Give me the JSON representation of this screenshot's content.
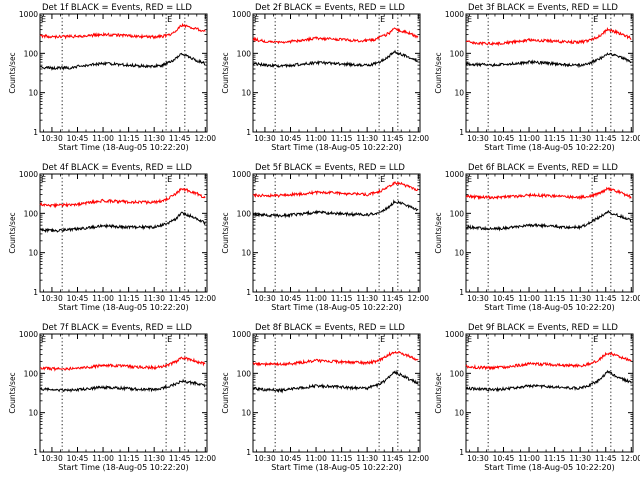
{
  "figure": {
    "common": {
      "title_suffix": "BLACK = Events, RED = LLD",
      "xlabel": "Start Time (18-Aug-05 10:22:20)",
      "ylabel": "Counts/sec",
      "xtick_labels": [
        "10:30",
        "10:45",
        "11:00",
        "11:15",
        "11:30",
        "11:45",
        "12:00"
      ],
      "ytick_labels": [
        "1",
        "10",
        "100",
        "1000"
      ],
      "marker_label": "E",
      "colors": {
        "events": "#000000",
        "lld": "#ff0000"
      }
    }
  },
  "chart_data": [
    {
      "type": "line",
      "title": "Det 1f BLACK = Events, RED = LLD",
      "xlabel": "Start Time (18-Aug-05 10:22:20)",
      "ylabel": "Counts/sec",
      "y_scale": "log",
      "xlim": [
        "10:23",
        "12:01"
      ],
      "ylim": [
        1,
        1000
      ],
      "vlines": [
        "10:36",
        "11:37",
        "11:48"
      ],
      "x": [
        "10:23",
        "10:30",
        "10:40",
        "10:50",
        "11:00",
        "11:10",
        "11:20",
        "11:30",
        "11:35",
        "11:40",
        "11:43",
        "11:46",
        "11:50",
        "11:55",
        "12:00"
      ],
      "series": [
        {
          "name": "Events",
          "color": "#000000",
          "values": [
            45,
            42,
            43,
            50,
            55,
            52,
            48,
            47,
            50,
            62,
            75,
            100,
            85,
            65,
            55
          ]
        },
        {
          "name": "LLD",
          "color": "#ff0000",
          "values": [
            280,
            260,
            265,
            280,
            300,
            290,
            270,
            260,
            270,
            300,
            380,
            520,
            480,
            420,
            350
          ]
        }
      ]
    },
    {
      "type": "line",
      "title": "Det 2f BLACK = Events, RED = LLD",
      "xlabel": "Start Time (18-Aug-05 10:22:20)",
      "ylabel": "Counts/sec",
      "y_scale": "log",
      "xlim": [
        "10:23",
        "12:01"
      ],
      "ylim": [
        1,
        1000
      ],
      "vlines": [
        "10:36",
        "11:37",
        "11:48"
      ],
      "x": [
        "10:23",
        "10:30",
        "10:40",
        "10:50",
        "11:00",
        "11:10",
        "11:20",
        "11:30",
        "11:35",
        "11:40",
        "11:43",
        "11:46",
        "11:50",
        "11:55",
        "12:00"
      ],
      "series": [
        {
          "name": "Events",
          "color": "#000000",
          "values": [
            55,
            50,
            48,
            52,
            58,
            56,
            52,
            50,
            55,
            70,
            85,
            110,
            95,
            80,
            65
          ]
        },
        {
          "name": "LLD",
          "color": "#ff0000",
          "values": [
            230,
            200,
            190,
            210,
            240,
            230,
            215,
            210,
            230,
            280,
            330,
            420,
            380,
            320,
            260
          ]
        }
      ]
    },
    {
      "type": "line",
      "title": "Det 3f BLACK = Events, RED = LLD",
      "xlabel": "Start Time (18-Aug-05 10:22:20)",
      "ylabel": "Counts/sec",
      "y_scale": "log",
      "xlim": [
        "10:23",
        "12:01"
      ],
      "ylim": [
        1,
        1000
      ],
      "vlines": [
        "10:36",
        "11:37",
        "11:48"
      ],
      "x": [
        "10:23",
        "10:30",
        "10:40",
        "10:50",
        "11:00",
        "11:10",
        "11:20",
        "11:30",
        "11:35",
        "11:40",
        "11:43",
        "11:46",
        "11:50",
        "11:55",
        "12:00"
      ],
      "series": [
        {
          "name": "Events",
          "color": "#000000",
          "values": [
            55,
            52,
            50,
            55,
            60,
            56,
            52,
            50,
            55,
            68,
            80,
            100,
            90,
            75,
            60
          ]
        },
        {
          "name": "LLD",
          "color": "#ff0000",
          "values": [
            200,
            180,
            175,
            190,
            220,
            210,
            195,
            190,
            210,
            260,
            310,
            400,
            360,
            300,
            240
          ]
        }
      ]
    },
    {
      "type": "line",
      "title": "Det 4f BLACK = Events, RED = LLD",
      "xlabel": "Start Time (18-Aug-05 10:22:20)",
      "ylabel": "Counts/sec",
      "y_scale": "log",
      "xlim": [
        "10:23",
        "12:01"
      ],
      "ylim": [
        1,
        1000
      ],
      "vlines": [
        "10:36",
        "11:37",
        "11:48"
      ],
      "x": [
        "10:23",
        "10:30",
        "10:40",
        "10:50",
        "11:00",
        "11:10",
        "11:20",
        "11:30",
        "11:35",
        "11:40",
        "11:43",
        "11:46",
        "11:50",
        "11:55",
        "12:00"
      ],
      "series": [
        {
          "name": "Events",
          "color": "#000000",
          "values": [
            38,
            36,
            38,
            42,
            48,
            46,
            44,
            45,
            50,
            62,
            75,
            100,
            90,
            75,
            55
          ]
        },
        {
          "name": "LLD",
          "color": "#ff0000",
          "values": [
            170,
            160,
            165,
            180,
            210,
            200,
            190,
            190,
            210,
            260,
            320,
            420,
            380,
            320,
            240
          ]
        }
      ]
    },
    {
      "type": "line",
      "title": "Det 5f BLACK = Events, RED = LLD",
      "xlabel": "Start Time (18-Aug-05 10:22:20)",
      "ylabel": "Counts/sec",
      "y_scale": "log",
      "xlim": [
        "10:23",
        "12:01"
      ],
      "ylim": [
        1,
        1000
      ],
      "vlines": [
        "10:36",
        "11:37",
        "11:48"
      ],
      "x": [
        "10:23",
        "10:30",
        "10:40",
        "10:50",
        "11:00",
        "11:10",
        "11:20",
        "11:30",
        "11:35",
        "11:40",
        "11:43",
        "11:46",
        "11:50",
        "11:55",
        "12:00"
      ],
      "series": [
        {
          "name": "Events",
          "color": "#000000",
          "values": [
            95,
            90,
            88,
            95,
            105,
            100,
            95,
            92,
            100,
            120,
            150,
            200,
            180,
            150,
            120
          ]
        },
        {
          "name": "LLD",
          "color": "#ff0000",
          "values": [
            290,
            280,
            285,
            310,
            340,
            330,
            310,
            300,
            330,
            400,
            480,
            600,
            560,
            470,
            380
          ]
        }
      ]
    },
    {
      "type": "line",
      "title": "Det 6f BLACK = Events, RED = LLD",
      "xlabel": "Start Time (18-Aug-05 10:22:20)",
      "ylabel": "Counts/sec",
      "y_scale": "log",
      "xlim": [
        "10:23",
        "12:01"
      ],
      "ylim": [
        1,
        1000
      ],
      "vlines": [
        "10:36",
        "11:37",
        "11:48"
      ],
      "x": [
        "10:23",
        "10:30",
        "10:40",
        "10:50",
        "11:00",
        "11:10",
        "11:20",
        "11:30",
        "11:35",
        "11:40",
        "11:43",
        "11:46",
        "11:50",
        "11:55",
        "12:00"
      ],
      "series": [
        {
          "name": "Events",
          "color": "#000000",
          "values": [
            45,
            42,
            40,
            44,
            50,
            48,
            45,
            44,
            55,
            75,
            90,
            110,
            95,
            80,
            65
          ]
        },
        {
          "name": "LLD",
          "color": "#ff0000",
          "values": [
            270,
            260,
            250,
            265,
            290,
            280,
            265,
            255,
            270,
            310,
            350,
            420,
            380,
            320,
            260
          ]
        }
      ]
    },
    {
      "type": "line",
      "title": "Det 7f BLACK = Events, RED = LLD",
      "xlabel": "Start Time (18-Aug-05 10:22:20)",
      "ylabel": "Counts/sec",
      "y_scale": "log",
      "xlim": [
        "10:23",
        "12:01"
      ],
      "ylim": [
        1,
        1000
      ],
      "vlines": [
        "10:36",
        "11:37",
        "11:48"
      ],
      "x": [
        "10:23",
        "10:30",
        "10:40",
        "10:50",
        "11:00",
        "11:10",
        "11:20",
        "11:30",
        "11:35",
        "11:40",
        "11:43",
        "11:46",
        "11:50",
        "11:55",
        "12:00"
      ],
      "series": [
        {
          "name": "Events",
          "color": "#000000",
          "values": [
            40,
            38,
            37,
            40,
            44,
            42,
            40,
            38,
            42,
            48,
            55,
            65,
            60,
            55,
            48
          ]
        },
        {
          "name": "LLD",
          "color": "#ff0000",
          "values": [
            140,
            130,
            130,
            140,
            160,
            155,
            145,
            140,
            150,
            175,
            200,
            250,
            230,
            200,
            170
          ]
        }
      ]
    },
    {
      "type": "line",
      "title": "Det 8f BLACK = Events, RED = LLD",
      "xlabel": "Start Time (18-Aug-05 10:22:20)",
      "ylabel": "Counts/sec",
      "y_scale": "log",
      "xlim": [
        "10:23",
        "12:01"
      ],
      "ylim": [
        1,
        1000
      ],
      "vlines": [
        "10:36",
        "11:37",
        "11:48"
      ],
      "x": [
        "10:23",
        "10:30",
        "10:40",
        "10:50",
        "11:00",
        "11:10",
        "11:20",
        "11:30",
        "11:35",
        "11:40",
        "11:43",
        "11:46",
        "11:50",
        "11:55",
        "12:00"
      ],
      "series": [
        {
          "name": "Events",
          "color": "#000000",
          "values": [
            42,
            38,
            37,
            42,
            48,
            46,
            43,
            42,
            48,
            62,
            80,
            110,
            90,
            70,
            55
          ]
        },
        {
          "name": "LLD",
          "color": "#ff0000",
          "values": [
            180,
            170,
            170,
            185,
            210,
            200,
            190,
            185,
            200,
            250,
            300,
            360,
            320,
            270,
            220
          ]
        }
      ]
    },
    {
      "type": "line",
      "title": "Det 9f BLACK = Events, RED = LLD",
      "xlabel": "Start Time (18-Aug-05 10:22:20)",
      "ylabel": "Counts/sec",
      "y_scale": "log",
      "xlim": [
        "10:23",
        "12:01"
      ],
      "ylim": [
        1,
        1000
      ],
      "vlines": [
        "10:36",
        "11:37",
        "11:48"
      ],
      "x": [
        "10:23",
        "10:30",
        "10:40",
        "10:50",
        "11:00",
        "11:10",
        "11:20",
        "11:30",
        "11:35",
        "11:40",
        "11:43",
        "11:46",
        "11:50",
        "11:55",
        "12:00"
      ],
      "series": [
        {
          "name": "Events",
          "color": "#000000",
          "values": [
            42,
            40,
            38,
            42,
            48,
            46,
            43,
            42,
            48,
            62,
            80,
            110,
            90,
            72,
            58
          ]
        },
        {
          "name": "LLD",
          "color": "#ff0000",
          "values": [
            150,
            140,
            140,
            150,
            175,
            170,
            160,
            155,
            170,
            210,
            260,
            330,
            300,
            250,
            200
          ]
        }
      ]
    }
  ]
}
